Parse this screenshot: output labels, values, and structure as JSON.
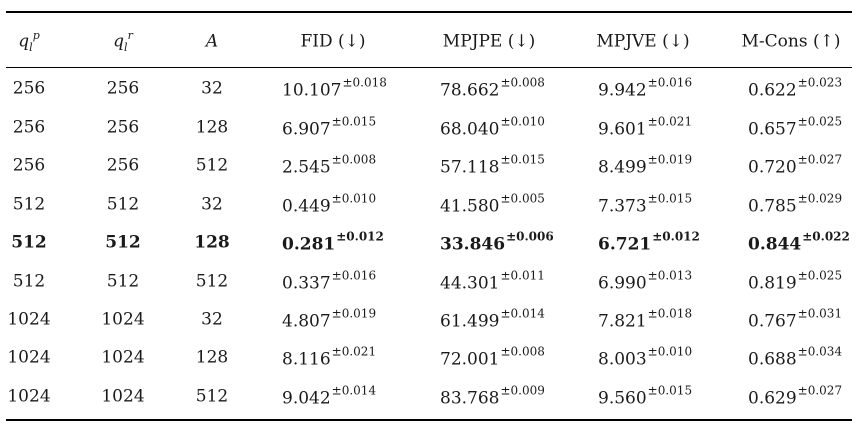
{
  "table": {
    "headers": {
      "qlp": {
        "base": "q",
        "sub": "l",
        "sup": "p"
      },
      "qlr": {
        "base": "q",
        "sub": "l",
        "sup": "r"
      },
      "A": "A",
      "fid": "FID (↓)",
      "mpjpe": "MPJPE (↓)",
      "mpjve": "MPJVE (↓)",
      "mcons": "M-Cons (↑)"
    },
    "rows": [
      {
        "qlp": "256",
        "qlr": "256",
        "A": "32",
        "fid": "10.107",
        "fid_pm": "±0.018",
        "mpjpe": "78.662",
        "mpjpe_pm": "±0.008",
        "mpjve": "9.942",
        "mpjve_pm": "±0.016",
        "mcons": "0.622",
        "mcons_pm": "±0.023"
      },
      {
        "qlp": "256",
        "qlr": "256",
        "A": "128",
        "fid": "6.907",
        "fid_pm": "±0.015",
        "mpjpe": "68.040",
        "mpjpe_pm": "±0.010",
        "mpjve": "9.601",
        "mpjve_pm": "±0.021",
        "mcons": "0.657",
        "mcons_pm": "±0.025"
      },
      {
        "qlp": "256",
        "qlr": "256",
        "A": "512",
        "fid": "2.545",
        "fid_pm": "±0.008",
        "mpjpe": "57.118",
        "mpjpe_pm": "±0.015",
        "mpjve": "8.499",
        "mpjve_pm": "±0.019",
        "mcons": "0.720",
        "mcons_pm": "±0.027"
      },
      {
        "qlp": "512",
        "qlr": "512",
        "A": "32",
        "fid": "0.449",
        "fid_pm": "±0.010",
        "mpjpe": "41.580",
        "mpjpe_pm": "±0.005",
        "mpjve": "7.373",
        "mpjve_pm": "±0.015",
        "mcons": "0.785",
        "mcons_pm": "±0.029"
      },
      {
        "qlp": "512",
        "qlr": "512",
        "A": "128",
        "fid": "0.281",
        "fid_pm": "±0.012",
        "mpjpe": "33.846",
        "mpjpe_pm": "±0.006",
        "mpjve": "6.721",
        "mpjve_pm": "±0.012",
        "mcons": "0.844",
        "mcons_pm": "±0.022",
        "bold": true
      },
      {
        "qlp": "512",
        "qlr": "512",
        "A": "512",
        "fid": "0.337",
        "fid_pm": "±0.016",
        "mpjpe": "44.301",
        "mpjpe_pm": "±0.011",
        "mpjve": "6.990",
        "mpjve_pm": "±0.013",
        "mcons": "0.819",
        "mcons_pm": "±0.025"
      },
      {
        "qlp": "1024",
        "qlr": "1024",
        "A": "32",
        "fid": "4.807",
        "fid_pm": "±0.019",
        "mpjpe": "61.499",
        "mpjpe_pm": "±0.014",
        "mpjve": "7.821",
        "mpjve_pm": "±0.018",
        "mcons": "0.767",
        "mcons_pm": "±0.031"
      },
      {
        "qlp": "1024",
        "qlr": "1024",
        "A": "128",
        "fid": "8.116",
        "fid_pm": "±0.021",
        "mpjpe": "72.001",
        "mpjpe_pm": "±0.008",
        "mpjve": "8.003",
        "mpjve_pm": "±0.010",
        "mcons": "0.688",
        "mcons_pm": "±0.034"
      },
      {
        "qlp": "1024",
        "qlr": "1024",
        "A": "512",
        "fid": "9.042",
        "fid_pm": "±0.014",
        "mpjpe": "83.768",
        "mpjpe_pm": "±0.009",
        "mpjve": "9.560",
        "mpjve_pm": "±0.015",
        "mcons": "0.629",
        "mcons_pm": "±0.027"
      }
    ]
  }
}
